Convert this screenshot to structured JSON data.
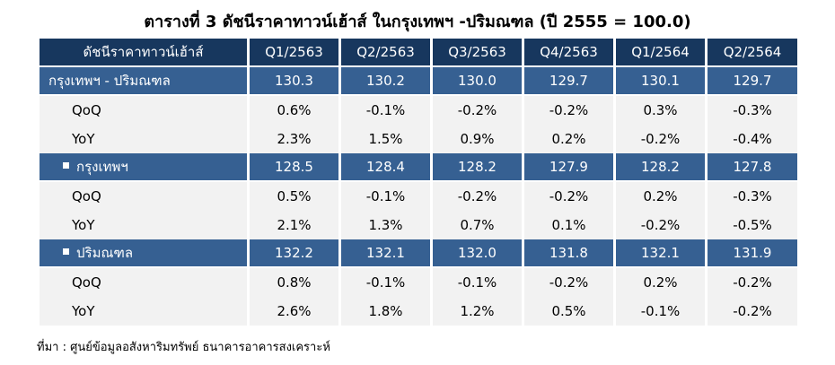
{
  "title": "ตารางที่ 3 ดัชนีราคาทาวน์เฮ้าส์ ในกรุงเทพฯ -ปริมณฑล (ปี 2555 = 100.0)",
  "table": {
    "header": [
      "ดัชนีราคาทาวน์เฮ้าส์",
      "Q1/2563",
      "Q2/2563",
      "Q3/2563",
      "Q4/2563",
      "Q1/2564",
      "Q2/2564"
    ],
    "groups": [
      {
        "label": "กรุงเทพฯ - ปริมณฑล",
        "bullet": false,
        "values": [
          "130.3",
          "130.2",
          "130.0",
          "129.7",
          "130.1",
          "129.7"
        ],
        "rows": [
          {
            "label": "QoQ",
            "values": [
              "0.6%",
              "-0.1%",
              "-0.2%",
              "-0.2%",
              "0.3%",
              "-0.3%"
            ]
          },
          {
            "label": "YoY",
            "values": [
              "2.3%",
              "1.5%",
              "0.9%",
              "0.2%",
              "-0.2%",
              "-0.4%"
            ]
          }
        ]
      },
      {
        "label": "กรุงเทพฯ",
        "bullet": true,
        "values": [
          "128.5",
          "128.4",
          "128.2",
          "127.9",
          "128.2",
          "127.8"
        ],
        "rows": [
          {
            "label": "QoQ",
            "values": [
              "0.5%",
              "-0.1%",
              "-0.2%",
              "-0.2%",
              "0.2%",
              "-0.3%"
            ]
          },
          {
            "label": "YoY",
            "values": [
              "2.1%",
              "1.3%",
              "0.7%",
              "0.1%",
              "-0.2%",
              "-0.5%"
            ]
          }
        ]
      },
      {
        "label": "ปริมณฑล",
        "bullet": true,
        "values": [
          "132.2",
          "132.1",
          "132.0",
          "131.8",
          "132.1",
          "131.9"
        ],
        "rows": [
          {
            "label": "QoQ",
            "values": [
              "0.8%",
              "-0.1%",
              "-0.1%",
              "-0.2%",
              "0.2%",
              "-0.2%"
            ]
          },
          {
            "label": "YoY",
            "values": [
              "2.6%",
              "1.8%",
              "1.2%",
              "0.5%",
              "-0.1%",
              "-0.2%"
            ]
          }
        ]
      }
    ]
  },
  "source": "ที่มา : ศูนย์ข้อมูลอสังหาริมทรัพย์ ธนาคารอาคารสงเคราะห์",
  "colors": {
    "header_bg": "#17375e",
    "group_bg": "#366092",
    "row_bg": "#f2f2f2",
    "negative": "#ff0000"
  }
}
